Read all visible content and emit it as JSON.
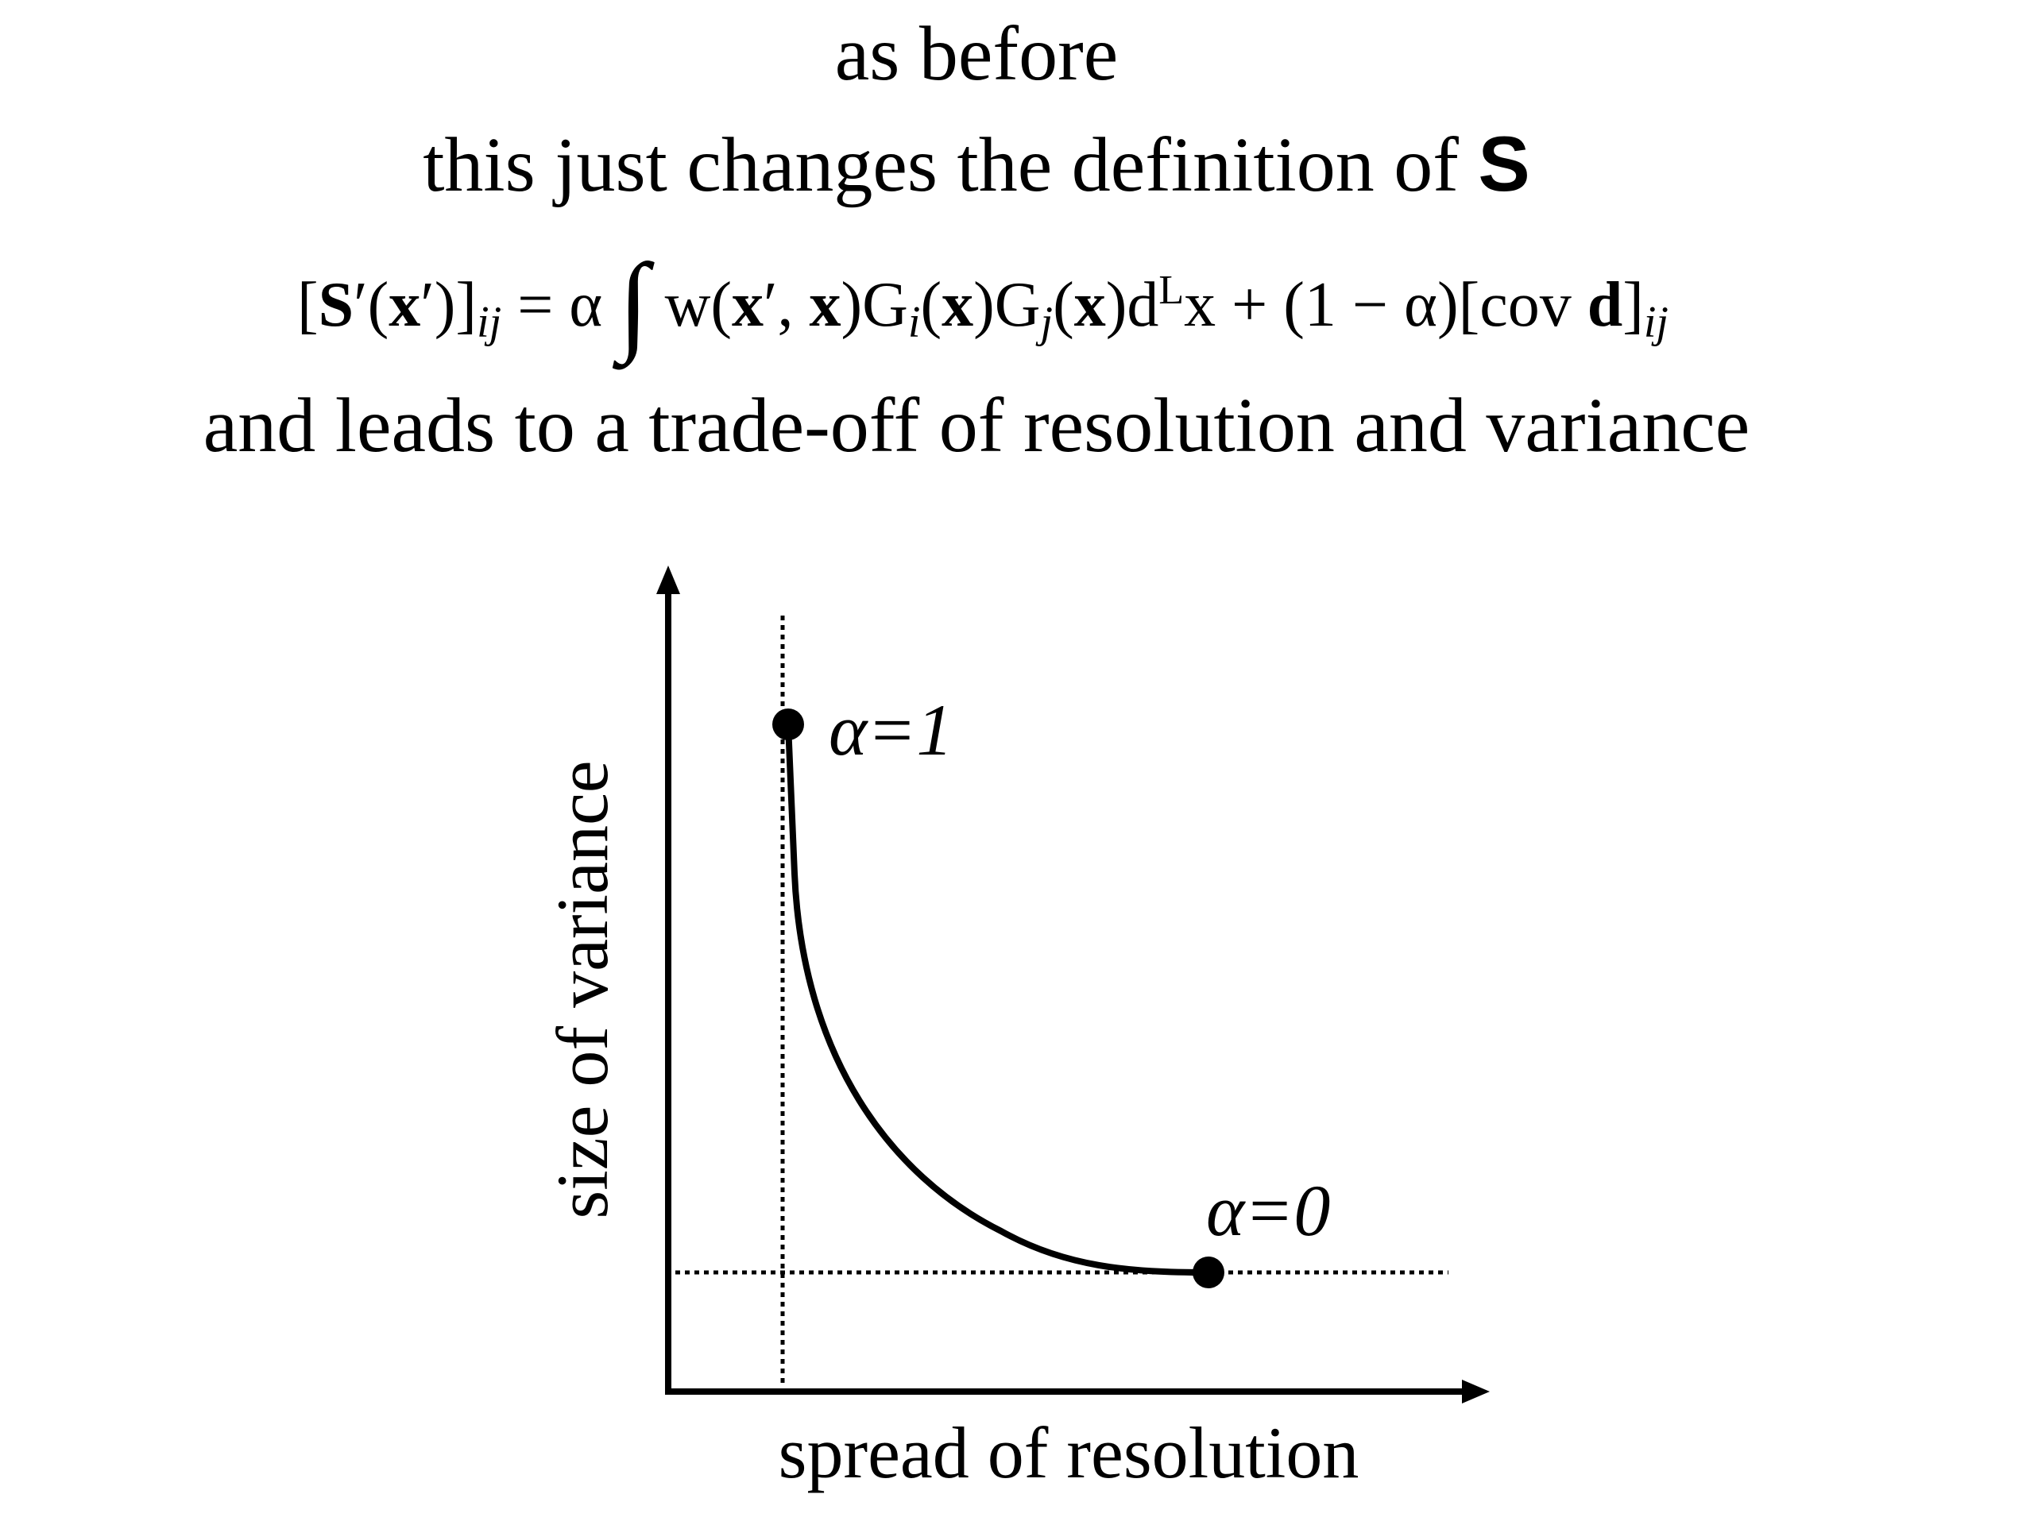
{
  "lines": {
    "first": "as before",
    "second": [
      "this just changes the definition of ",
      "S"
    ],
    "formula": [
      "[",
      "S",
      "′(",
      "x",
      "′)]",
      "ij",
      " = α ",
      "∫",
      " w(",
      "x",
      "′, ",
      "x",
      ")G",
      "i",
      "(",
      "x",
      ")G",
      "j",
      "(",
      "x",
      ")d",
      "L",
      "x + (1 − α)[cov ",
      "d",
      "]",
      "ij"
    ],
    "fourth": "and leads to a trade-off of resolution and variance"
  },
  "diagram": {
    "y_label": "size of variance",
    "x_label": "spread of resolution",
    "point_high": "α=1",
    "point_low": "α=0"
  }
}
